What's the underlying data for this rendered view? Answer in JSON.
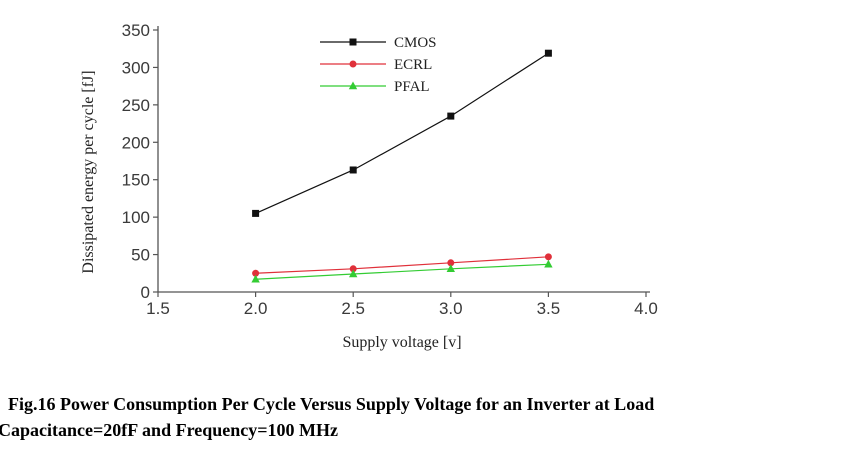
{
  "caption": {
    "line1": "Fig.16 Power Consumption Per Cycle Versus Supply Voltage for an Inverter at Load",
    "line2": "Capacitance=20fF and Frequency=100 MHz"
  },
  "chart_data": {
    "type": "line",
    "xlabel": "Supply voltage [v]",
    "ylabel": "Dissipated energy per cycle [fJ]",
    "xlim": [
      1.5,
      4.0
    ],
    "ylim": [
      0,
      350
    ],
    "xticks": [
      "1.5",
      "2.0",
      "2.5",
      "3.0",
      "3.5",
      "4.0"
    ],
    "yticks": [
      "0",
      "50",
      "100",
      "150",
      "200",
      "250",
      "300",
      "350"
    ],
    "x": [
      2.0,
      2.5,
      3.0,
      3.5
    ],
    "grid": false,
    "legend_position": "top-center",
    "series": [
      {
        "name": "CMOS",
        "values": [
          105,
          163,
          235,
          319
        ],
        "color": "#111111",
        "marker": "square"
      },
      {
        "name": "ECRL",
        "values": [
          25,
          31,
          39,
          47
        ],
        "color": "#e0303a",
        "marker": "circle"
      },
      {
        "name": "PFAL",
        "values": [
          17,
          24,
          31,
          37
        ],
        "color": "#33cc33",
        "marker": "triangle"
      }
    ]
  }
}
